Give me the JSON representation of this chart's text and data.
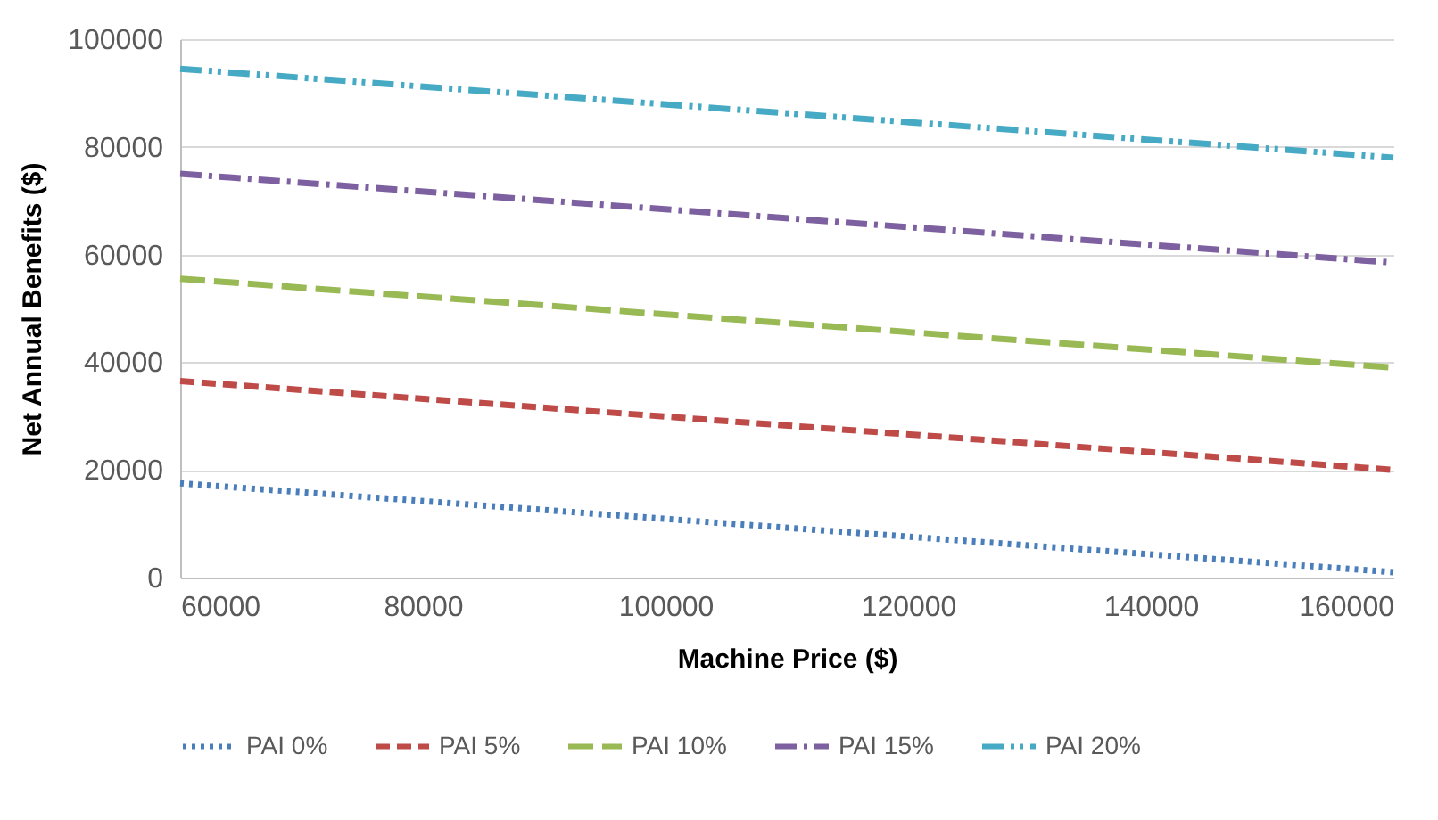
{
  "chart_data": {
    "type": "line",
    "xlabel": "Machine Price ($)",
    "ylabel": "Net Annual Benefits ($)",
    "x": [
      60000,
      160000
    ],
    "xlim": [
      60000,
      160000
    ],
    "xticks": [
      60000,
      80000,
      100000,
      120000,
      140000,
      160000
    ],
    "ylim": [
      0,
      100000
    ],
    "yticks": [
      0,
      20000,
      40000,
      60000,
      80000,
      100000
    ],
    "grid": "y",
    "legend": "bottom",
    "marker": "none",
    "series": [
      {
        "name": "PAI 0%",
        "color": "#4a7ebb",
        "line_style": "dotted",
        "values": [
          17500,
          1000
        ]
      },
      {
        "name": "PAI 5%",
        "color": "#be4b48",
        "line_style": "dashed",
        "values": [
          36500,
          20000
        ]
      },
      {
        "name": "PAI 10%",
        "color": "#98b954",
        "line_style": "dashed",
        "values": [
          55500,
          39000
        ]
      },
      {
        "name": "PAI 15%",
        "color": "#7d60a0",
        "line_style": "dashed",
        "values": [
          75000,
          58500
        ]
      },
      {
        "name": "PAI 20%",
        "color": "#46aac5",
        "line_style": "dashed",
        "values": [
          94500,
          78000
        ]
      }
    ]
  }
}
